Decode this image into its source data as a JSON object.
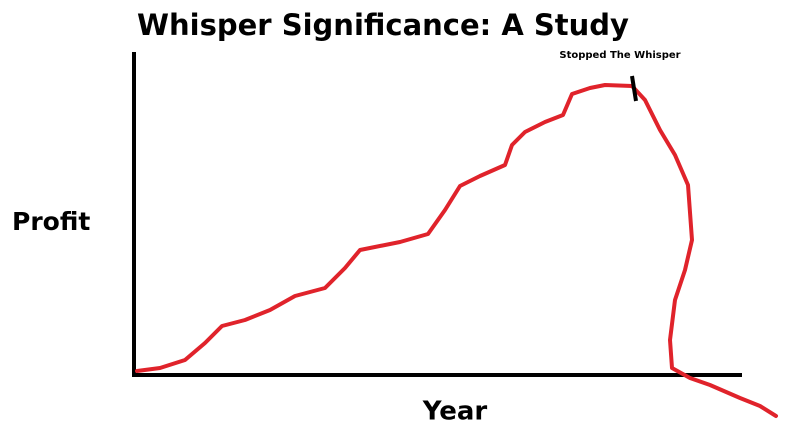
{
  "title": "Whisper Significance: A Study",
  "y_label": "Profit",
  "x_label": "Year",
  "annotation": "Stopped The Whisper"
}
